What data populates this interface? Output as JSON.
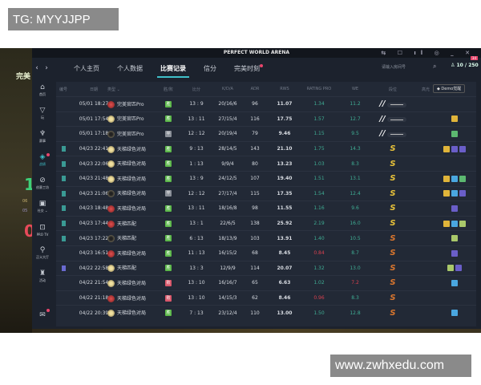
{
  "watermarks": {
    "top_left": "TG: MYYJJPP",
    "bottom_right": "www.zwhxedu.com"
  },
  "window": {
    "title": "PERFECT WORLD ARENA"
  },
  "background": {
    "logo_text": "完美",
    "num_green": "1",
    "num_red": "0",
    "small_a": "06",
    "small_b": "05"
  },
  "nav": {
    "tabs": [
      {
        "label": "个人主页"
      },
      {
        "label": "个人数据"
      },
      {
        "label": "比赛记录",
        "active": true
      },
      {
        "label": "信分"
      },
      {
        "label": "完美时刻",
        "dot": true
      }
    ],
    "search_placeholder": "请输入房间号",
    "points": "10 / 250",
    "notif_badge": "34"
  },
  "sidebar": {
    "items": [
      {
        "icon": "⌂",
        "label": "首页"
      },
      {
        "icon": "▽",
        "label": "玩"
      },
      {
        "icon": "♆",
        "label": "赛事"
      },
      {
        "icon": "◈",
        "label": "战绩",
        "active": true,
        "dot": true
      },
      {
        "icon": "⊘",
        "label": "创意工坊"
      },
      {
        "icon": "▣",
        "label": "社交 ⌄"
      },
      {
        "icon": "⊡",
        "label": "PRO TV"
      },
      {
        "icon": "⚲",
        "label": "正义大厅"
      },
      {
        "icon": "♜",
        "label": "活动"
      },
      {
        "icon": "✉",
        "label": "",
        "dot": true
      }
    ]
  },
  "colors": {
    "accent": "#3fc0c8",
    "win": "#5cb84a",
    "draw": "#8a8f98",
    "loss": "#d9576a",
    "rating_good": "#3fae94",
    "bad": "#d8404f",
    "rank_gold": "#e8c23a",
    "rank_orange": "#d9762e",
    "hl_yellow": "#e0b43a",
    "hl_blue": "#4aa7e0",
    "hl_purple": "#6a5ec8",
    "hl_green": "#5cb870",
    "hl_lime": "#a9c86a"
  },
  "table": {
    "headers": [
      "编号",
      "日期",
      "类型 ⌄",
      "胜/败",
      "比分",
      "K/D/A",
      "ADR",
      "RWS",
      "RATING PRO",
      "WE",
      "段位",
      "高光"
    ],
    "demo_button": "Demo觉醒",
    "rows": [
      {
        "mark": "",
        "date": "05/01 18:27",
        "type_icon": "red",
        "type": "完美官匹Pro",
        "result": "胜",
        "score": "13 : 9",
        "kda": "20/16/6",
        "adr": "96",
        "rws": "11.07",
        "rating": "1.34",
        "we": "11.2",
        "rank": "//",
        "hl": []
      },
      {
        "mark": "",
        "date": "05/01 17:54",
        "type_icon": "gold",
        "type": "完美官匹Pro",
        "result": "胜",
        "score": "13 : 11",
        "kda": "27/15/4",
        "adr": "116",
        "rws": "17.75",
        "rating": "1.57",
        "we": "12.7",
        "rank": "//",
        "hl": [
          "yellow"
        ]
      },
      {
        "mark": "",
        "date": "05/01 17:18",
        "type_icon": "dark",
        "type": "完美官匹Pro",
        "result": "平",
        "score": "12 : 12",
        "kda": "20/19/4",
        "adr": "79",
        "rws": "9.46",
        "rating": "1.15",
        "we": "9.5",
        "rank": "//",
        "hl": [
          "green"
        ]
      },
      {
        "mark": "teal",
        "date": "04/23 22:41",
        "type_icon": "gold",
        "type": "天梯绿色对局",
        "result": "胜",
        "score": "9 : 13",
        "kda": "28/14/5",
        "adr": "143",
        "rws": "21.10",
        "rating": "1.75",
        "we": "14.3",
        "rank": "S",
        "rank_color": "gold",
        "hl": [
          "yellow",
          "purple",
          "purple"
        ]
      },
      {
        "mark": "teal",
        "date": "04/23 22:06",
        "type_icon": "gold",
        "type": "天梯绿色对局",
        "result": "胜",
        "score": "1 : 13",
        "kda": "9/9/4",
        "adr": "80",
        "rws": "13.23",
        "rating": "1.03",
        "we": "8.3",
        "rank": "S",
        "rank_color": "gold",
        "hl": []
      },
      {
        "mark": "teal",
        "date": "04/23 21:48",
        "type_icon": "gold",
        "type": "天梯绿色对局",
        "result": "胜",
        "score": "13 : 9",
        "kda": "24/12/5",
        "adr": "107",
        "rws": "19.40",
        "rating": "1.51",
        "we": "13.1",
        "rank": "S",
        "rank_color": "gold",
        "hl": [
          "yellow",
          "blue",
          "green"
        ]
      },
      {
        "mark": "teal",
        "date": "04/23 21:06",
        "type_icon": "dark",
        "type": "天梯绿色对局",
        "result": "平",
        "score": "12 : 12",
        "kda": "27/17/4",
        "adr": "115",
        "rws": "17.35",
        "rating": "1.54",
        "we": "12.4",
        "rank": "S",
        "rank_color": "gold",
        "hl": [
          "yellow",
          "blue",
          "purple"
        ]
      },
      {
        "mark": "teal",
        "date": "04/23 18:48",
        "type_icon": "red",
        "type": "天梯绿色对局",
        "result": "胜",
        "score": "13 : 11",
        "kda": "18/16/8",
        "adr": "98",
        "rws": "11.55",
        "rating": "1.16",
        "we": "9.6",
        "rank": "S",
        "rank_color": "gold",
        "hl": [
          "purple"
        ]
      },
      {
        "mark": "teal",
        "date": "04/23 17:44",
        "type_icon": "red",
        "type": "天梯匹配",
        "result": "胜",
        "score": "13 : 1",
        "kda": "22/6/5",
        "adr": "138",
        "rws": "25.92",
        "rating": "2.19",
        "we": "16.0",
        "rank": "S",
        "rank_color": "gold",
        "hl": [
          "yellow",
          "blue",
          "lime"
        ]
      },
      {
        "mark": "teal",
        "date": "04/23 17:22",
        "type_icon": "dark",
        "type": "天梯匹配",
        "result": "胜",
        "score": "6 : 13",
        "kda": "18/13/9",
        "adr": "103",
        "rws": "13.91",
        "rating": "1.40",
        "we": "10.5",
        "rank": "S",
        "rank_color": "orange",
        "hl": [
          "lime"
        ]
      },
      {
        "mark": "",
        "date": "04/23 16:51",
        "type_icon": "red",
        "type": "天梯绿色对局",
        "result": "胜",
        "score": "11 : 13",
        "kda": "16/15/2",
        "adr": "68",
        "rws": "8.45",
        "rating": "0.84",
        "rating_bad": true,
        "we": "8.7",
        "rank": "S",
        "rank_color": "orange",
        "hl": [
          "purple"
        ]
      },
      {
        "mark": "purple",
        "date": "04/22 22:58",
        "type_icon": "gold",
        "type": "天梯匹配",
        "result": "胜",
        "score": "13 : 3",
        "kda": "12/9/9",
        "adr": "114",
        "rws": "20.07",
        "rating": "1.32",
        "we": "13.0",
        "rank": "S",
        "rank_color": "orange",
        "hl": [
          "lime",
          "purple"
        ]
      },
      {
        "mark": "",
        "date": "04/22 21:54",
        "type_icon": "gold",
        "type": "天梯绿色对局",
        "result": "败",
        "score": "13 : 10",
        "kda": "16/16/7",
        "adr": "65",
        "rws": "6.63",
        "rating": "1.02",
        "we": "7.2",
        "we_bad": true,
        "rank": "S",
        "rank_color": "orange",
        "hl": [
          "blue"
        ]
      },
      {
        "mark": "",
        "date": "04/22 21:18",
        "type_icon": "red",
        "type": "天梯绿色对局",
        "result": "败",
        "score": "13 : 10",
        "kda": "14/15/3",
        "adr": "62",
        "rws": "8.46",
        "rating": "0.96",
        "rating_bad": true,
        "we": "8.3",
        "rank": "S",
        "rank_color": "orange",
        "hl": []
      },
      {
        "mark": "",
        "date": "04/22 20:39",
        "type_icon": "gold",
        "type": "天梯绿色对局",
        "result": "胜",
        "score": "7 : 13",
        "kda": "23/12/4",
        "adr": "110",
        "rws": "13.00",
        "rating": "1.50",
        "we": "12.8",
        "rank": "S",
        "rank_color": "orange",
        "hl": [
          "blue"
        ]
      }
    ]
  }
}
